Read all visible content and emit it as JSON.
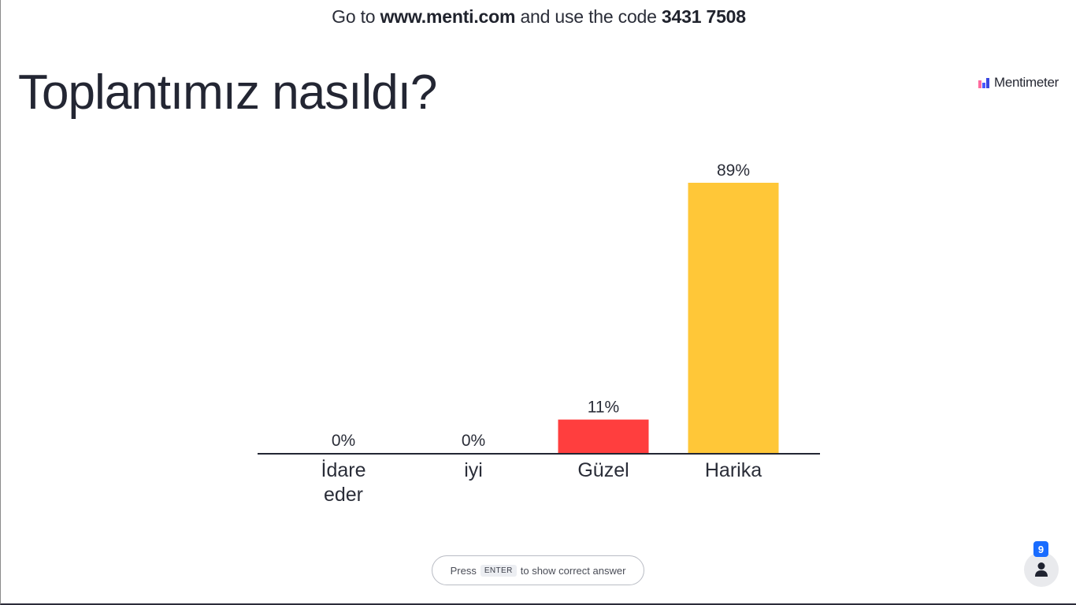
{
  "join": {
    "prefix": "Go to",
    "url": "www.menti.com",
    "middle": "and use the code",
    "code": "3431 7508"
  },
  "question": {
    "title": "Toplantımız nasıldı?"
  },
  "brand": {
    "name": "Mentimeter",
    "icon": "mentimeter-logo-icon"
  },
  "chart_data": {
    "type": "bar",
    "categories": [
      [
        "İdare",
        "eder"
      ],
      [
        "iyi"
      ],
      [
        "Güzel"
      ],
      [
        "Harika"
      ]
    ],
    "values": [
      0,
      0,
      11,
      89
    ],
    "value_labels": [
      "0%",
      "0%",
      "11%",
      "89%"
    ],
    "colors": [
      "#3b4aff",
      "#ff8f8f",
      "#ff3e3e",
      "#ffc738"
    ],
    "ylim": [
      0,
      89
    ],
    "grid": false,
    "legend": "none",
    "title": "",
    "xlabel": "",
    "ylabel": ""
  },
  "hint": {
    "press": "Press",
    "key": "ENTER",
    "rest": "to show correct answer"
  },
  "participants": {
    "count": "9",
    "icon": "person-icon"
  }
}
